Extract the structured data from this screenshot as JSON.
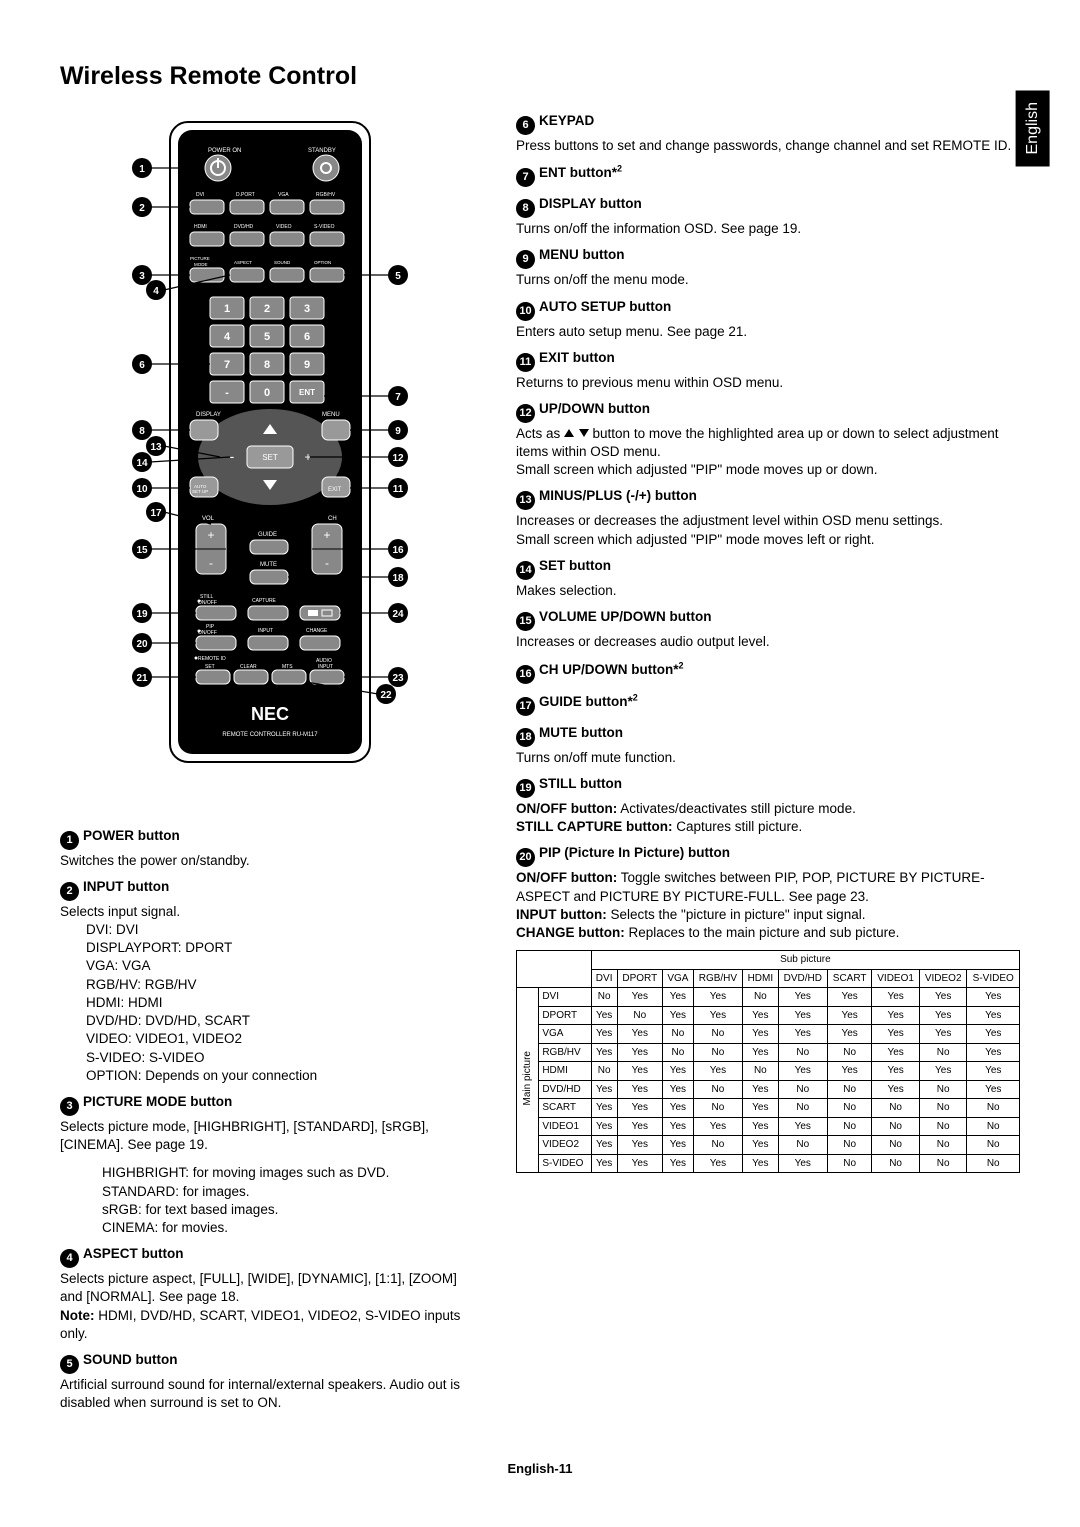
{
  "page": {
    "title": "Wireless Remote Control",
    "language_tab": "English",
    "footer": "English-11"
  },
  "remote": {
    "brand": "NEC",
    "model": "REMOTE CONTROLLER RU-M117",
    "labels": {
      "power_on": "POWER ON",
      "standby": "STANDBY",
      "dvi": "DVI",
      "dport": "D.PORT",
      "vga": "VGA",
      "rgbhv": "RGB/HV",
      "hdmi": "HDMI",
      "dvdhd": "DVD/HD",
      "video": "VIDEO",
      "svideo": "S-VIDEO",
      "picture_mode": "PICTURE\nMODE",
      "aspect": "ASPECT",
      "sound": "SOUND",
      "option": "OPTION",
      "ent": "ENT",
      "display": "DISPLAY",
      "menu": "MENU",
      "auto_setup": "AUTO\nSET UP",
      "set": "SET",
      "exit": "EXIT",
      "vol": "VOL",
      "ch": "CH",
      "guide": "GUIDE",
      "mute": "MUTE",
      "still_onoff": "STILL\nON/OFF",
      "capture": "CAPTURE",
      "pip_onoff": "PIP\nON/OFF",
      "input": "INPUT",
      "change": "CHANGE",
      "remote_id": "REMOTE ID",
      "set_btn": "SET",
      "clear": "CLEAR",
      "mts": "MTS",
      "audio_input": "AUDIO\nINPUT"
    },
    "callouts": {
      "1": "1",
      "2": "2",
      "3": "3",
      "4": "4",
      "5": "5",
      "6": "6",
      "7": "7",
      "8": "8",
      "9": "9",
      "10": "10",
      "11": "11",
      "12": "12",
      "13": "13",
      "14": "14",
      "15": "15",
      "16": "16",
      "17": "17",
      "18": "18",
      "19": "19",
      "20": "20",
      "21": "21",
      "22": "22",
      "23": "23",
      "24": "24"
    }
  },
  "left_items": {
    "1": {
      "title": "POWER button",
      "body": "Switches the power on/standby."
    },
    "2": {
      "title": "INPUT button",
      "lead": "Selects input signal.",
      "lines": [
        "DVI: DVI",
        "DISPLAYPORT: DPORT",
        "VGA: VGA",
        "RGB/HV: RGB/HV",
        "HDMI: HDMI",
        "DVD/HD: DVD/HD, SCART",
        "VIDEO: VIDEO1, VIDEO2",
        "S-VIDEO: S-VIDEO",
        "OPTION: Depends on your connection"
      ]
    },
    "3": {
      "title": "PICTURE MODE button",
      "body": "Selects picture mode, [HIGHBRIGHT], [STANDARD], [sRGB], [CINEMA]. See page 19.",
      "lines": [
        "HIGHBRIGHT: for moving images such as DVD.",
        "STANDARD: for images.",
        "sRGB: for text based images.",
        "CINEMA: for movies."
      ]
    },
    "4": {
      "title": "ASPECT button",
      "body1": "Selects picture aspect, [FULL], [WIDE], [DYNAMIC], [1:1], [ZOOM] and [NORMAL]. See page 18.",
      "note_label": "Note:",
      "note_body": " HDMI, DVD/HD, SCART, VIDEO1, VIDEO2, S-VIDEO inputs only."
    },
    "5": {
      "title": "SOUND button",
      "body": "Artificial surround sound for internal/external speakers. Audio out is disabled when surround is set to ON."
    }
  },
  "right_items": {
    "6": {
      "title": "KEYPAD",
      "body": "Press buttons to set and change passwords, change channel and set REMOTE ID."
    },
    "7": {
      "title": "ENT button*2"
    },
    "8": {
      "title": "DISPLAY button",
      "body": "Turns on/off the information OSD. See page 19."
    },
    "9": {
      "title": "MENU button",
      "body": "Turns on/off the menu mode."
    },
    "10": {
      "title": "AUTO SETUP button",
      "body": "Enters auto setup menu. See page 21."
    },
    "11": {
      "title": "EXIT button",
      "body": "Returns to previous menu within OSD menu."
    },
    "12": {
      "title": "UP/DOWN button",
      "body1": "Acts as ▲ ▼ button to move the highlighted area up or down to select adjustment items within OSD menu.",
      "body2": "Small screen which adjusted \"PIP\" mode moves up or down."
    },
    "13": {
      "title": "MINUS/PLUS (-/+) button",
      "body1": "Increases or decreases the adjustment level within OSD menu settings.",
      "body2": "Small screen which adjusted \"PIP\" mode moves left or right."
    },
    "14": {
      "title": "SET button",
      "body": "Makes selection."
    },
    "15": {
      "title": "VOLUME UP/DOWN button",
      "body": "Increases or decreases audio output level."
    },
    "16": {
      "title": "CH UP/DOWN button*2"
    },
    "17": {
      "title": "GUIDE button*2"
    },
    "18": {
      "title": "MUTE button",
      "body": "Turns on/off mute function."
    },
    "19": {
      "title": "STILL button",
      "on_off_label": "ON/OFF button:",
      "on_off_body": " Activates/deactivates still picture mode.",
      "capture_label": "STILL CAPTURE button:",
      "capture_body": " Captures still picture."
    },
    "20": {
      "title": "PIP (Picture In Picture) button",
      "on_off_label": "ON/OFF button:",
      "on_off_body": " Toggle switches between PIP, POP, PICTURE BY PICTURE-ASPECT and PICTURE BY PICTURE-FULL. See page 23.",
      "input_label": "INPUT button:",
      "input_body": " Selects the \"picture in picture\" input signal.",
      "change_label": "CHANGE button:",
      "change_body": " Replaces to the main picture and sub picture."
    }
  },
  "compat": {
    "sub_header": "Sub picture",
    "main_header": "Main picture",
    "cols": [
      "DVI",
      "DPORT",
      "VGA",
      "RGB/HV",
      "HDMI",
      "DVD/HD",
      "SCART",
      "VIDEO1",
      "VIDEO2",
      "S-VIDEO"
    ],
    "rows": [
      {
        "label": "DVI",
        "cells": [
          "No",
          "Yes",
          "Yes",
          "Yes",
          "No",
          "Yes",
          "Yes",
          "Yes",
          "Yes",
          "Yes"
        ]
      },
      {
        "label": "DPORT",
        "cells": [
          "Yes",
          "No",
          "Yes",
          "Yes",
          "Yes",
          "Yes",
          "Yes",
          "Yes",
          "Yes",
          "Yes"
        ]
      },
      {
        "label": "VGA",
        "cells": [
          "Yes",
          "Yes",
          "No",
          "No",
          "Yes",
          "Yes",
          "Yes",
          "Yes",
          "Yes",
          "Yes"
        ]
      },
      {
        "label": "RGB/HV",
        "cells": [
          "Yes",
          "Yes",
          "No",
          "No",
          "Yes",
          "No",
          "No",
          "Yes",
          "No",
          "Yes"
        ]
      },
      {
        "label": "HDMI",
        "cells": [
          "No",
          "Yes",
          "Yes",
          "Yes",
          "No",
          "Yes",
          "Yes",
          "Yes",
          "Yes",
          "Yes"
        ]
      },
      {
        "label": "DVD/HD",
        "cells": [
          "Yes",
          "Yes",
          "Yes",
          "No",
          "Yes",
          "No",
          "No",
          "Yes",
          "No",
          "Yes"
        ]
      },
      {
        "label": "SCART",
        "cells": [
          "Yes",
          "Yes",
          "Yes",
          "No",
          "Yes",
          "No",
          "No",
          "No",
          "No",
          "No"
        ]
      },
      {
        "label": "VIDEO1",
        "cells": [
          "Yes",
          "Yes",
          "Yes",
          "Yes",
          "Yes",
          "Yes",
          "No",
          "No",
          "No",
          "No"
        ]
      },
      {
        "label": "VIDEO2",
        "cells": [
          "Yes",
          "Yes",
          "Yes",
          "No",
          "Yes",
          "No",
          "No",
          "No",
          "No",
          "No"
        ]
      },
      {
        "label": "S-VIDEO",
        "cells": [
          "Yes",
          "Yes",
          "Yes",
          "Yes",
          "Yes",
          "Yes",
          "No",
          "No",
          "No",
          "No"
        ]
      }
    ]
  }
}
